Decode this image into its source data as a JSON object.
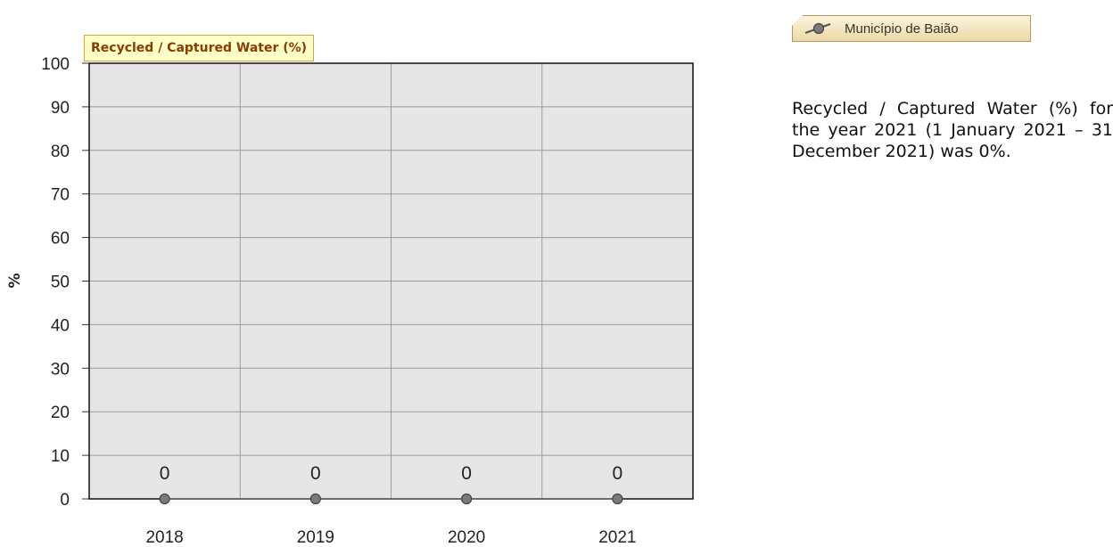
{
  "chart_data": {
    "type": "line",
    "title": "Recycled / Captured Water (%)",
    "ylabel": "%",
    "xlabel": "",
    "categories": [
      "2018",
      "2019",
      "2020",
      "2021"
    ],
    "series": [
      {
        "name": "Município de Baião",
        "values": [
          0,
          0,
          0,
          0
        ]
      }
    ],
    "data_labels": [
      "0",
      "0",
      "0",
      "0"
    ],
    "ylim": [
      0,
      100
    ],
    "yticks": [
      0,
      10,
      20,
      30,
      40,
      50,
      60,
      70,
      80,
      90,
      100
    ],
    "grid": true,
    "legend_position": "top-right",
    "colors": {
      "plot_background": "#e6e6e6",
      "gridline": "#9a9a9a",
      "marker": "#7a7a7a",
      "title_background": "#ffffc8",
      "title_text": "#8b3a00"
    }
  },
  "legend": {
    "label": "Município de Baião",
    "icon": "line-marker-icon"
  },
  "summary_text": "Recycled / Captured Water (%) for the year 2021 (1 January 2021 – 31 December 2021) was 0%."
}
